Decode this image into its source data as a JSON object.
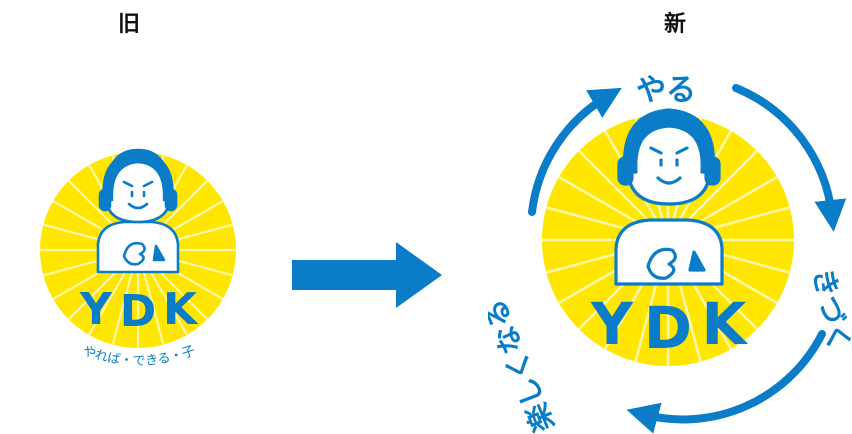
{
  "headings": {
    "old": "旧",
    "new": "新"
  },
  "old_logo": {
    "letters": [
      "Y",
      "D",
      "K"
    ],
    "tagline": "やれば・できる・子"
  },
  "new_logo": {
    "letters": [
      "Y",
      "D",
      "K"
    ],
    "cycle_words": [
      "やる",
      "きづく",
      "楽しくなる"
    ]
  },
  "colors": {
    "yellow": "#FFE600",
    "yellow_ray": "#FFF7A8",
    "blue": "#0A7CC8",
    "character_fill": "#ffffff"
  },
  "icons": {
    "transition": "arrow-right-icon"
  }
}
